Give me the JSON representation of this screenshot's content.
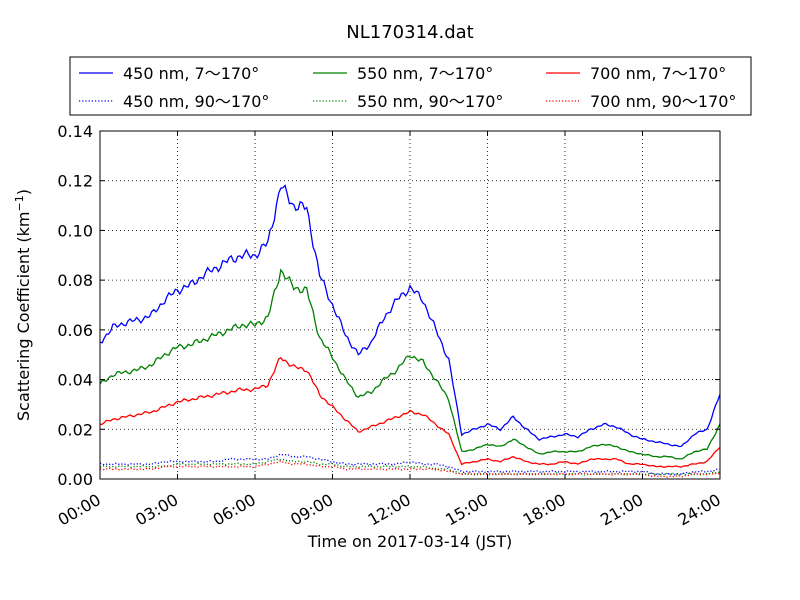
{
  "chart_data": {
    "type": "line",
    "title": "NL170314.dat",
    "xlabel": "Time on 2017-03-14 (JST)",
    "ylabel_main": "Scattering Coefficient (km",
    "ylabel_sup": "−1",
    "ylabel_close": ")",
    "xlim": [
      "00:00",
      "24:00"
    ],
    "ylim": [
      0.0,
      0.14
    ],
    "x_tick_labels": [
      "00:00",
      "03:00",
      "06:00",
      "09:00",
      "12:00",
      "15:00",
      "18:00",
      "21:00",
      "24:00"
    ],
    "y_tick_labels": [
      "0.00",
      "0.02",
      "0.04",
      "0.06",
      "0.08",
      "0.10",
      "0.12",
      "0.14"
    ],
    "grid": true,
    "legend_position": "top",
    "x": [
      "00:00",
      "00:30",
      "01:00",
      "01:30",
      "02:00",
      "02:30",
      "03:00",
      "03:30",
      "04:00",
      "04:30",
      "05:00",
      "05:30",
      "06:00",
      "06:30",
      "07:00",
      "07:30",
      "08:00",
      "08:30",
      "09:00",
      "09:30",
      "10:00",
      "10:30",
      "11:00",
      "11:30",
      "12:00",
      "12:30",
      "13:00",
      "13:30",
      "14:00",
      "14:30",
      "15:00",
      "15:30",
      "16:00",
      "16:30",
      "17:00",
      "17:30",
      "18:00",
      "18:30",
      "19:00",
      "19:30",
      "20:00",
      "20:30",
      "21:00",
      "21:30",
      "22:00",
      "22:30",
      "23:00",
      "23:30",
      "24:00"
    ],
    "series": [
      {
        "name": "450 nm, 7～170°",
        "color": "#0000ff",
        "style": "solid",
        "values": [
          0.055,
          0.061,
          0.063,
          0.064,
          0.066,
          0.072,
          0.076,
          0.078,
          0.082,
          0.085,
          0.088,
          0.09,
          0.09,
          0.095,
          0.118,
          0.11,
          0.109,
          0.082,
          0.07,
          0.058,
          0.05,
          0.055,
          0.065,
          0.072,
          0.077,
          0.072,
          0.06,
          0.048,
          0.018,
          0.02,
          0.022,
          0.02,
          0.025,
          0.02,
          0.016,
          0.017,
          0.018,
          0.017,
          0.02,
          0.022,
          0.021,
          0.018,
          0.016,
          0.015,
          0.014,
          0.013,
          0.018,
          0.02,
          0.034
        ]
      },
      {
        "name": "450 nm, 90～170°",
        "color": "#0000ff",
        "style": "dotted",
        "values": [
          0.006,
          0.006,
          0.006,
          0.006,
          0.006,
          0.007,
          0.007,
          0.007,
          0.007,
          0.007,
          0.008,
          0.008,
          0.008,
          0.008,
          0.01,
          0.009,
          0.009,
          0.008,
          0.007,
          0.006,
          0.006,
          0.006,
          0.006,
          0.006,
          0.007,
          0.006,
          0.006,
          0.005,
          0.003,
          0.003,
          0.003,
          0.003,
          0.003,
          0.003,
          0.003,
          0.003,
          0.003,
          0.003,
          0.003,
          0.003,
          0.003,
          0.003,
          0.003,
          0.002,
          0.002,
          0.002,
          0.003,
          0.003,
          0.004
        ]
      },
      {
        "name": "550 nm, 7～170°",
        "color": "#008000",
        "style": "solid",
        "values": [
          0.038,
          0.042,
          0.043,
          0.044,
          0.046,
          0.05,
          0.053,
          0.054,
          0.056,
          0.058,
          0.06,
          0.062,
          0.062,
          0.065,
          0.084,
          0.077,
          0.076,
          0.057,
          0.049,
          0.04,
          0.033,
          0.035,
          0.04,
          0.044,
          0.05,
          0.047,
          0.04,
          0.032,
          0.011,
          0.012,
          0.014,
          0.013,
          0.016,
          0.013,
          0.01,
          0.011,
          0.011,
          0.011,
          0.013,
          0.014,
          0.013,
          0.011,
          0.01,
          0.009,
          0.009,
          0.008,
          0.011,
          0.012,
          0.022
        ]
      },
      {
        "name": "550 nm, 90～170°",
        "color": "#008000",
        "style": "dotted",
        "values": [
          0.005,
          0.005,
          0.005,
          0.005,
          0.005,
          0.005,
          0.006,
          0.006,
          0.006,
          0.006,
          0.006,
          0.006,
          0.006,
          0.007,
          0.008,
          0.007,
          0.007,
          0.006,
          0.006,
          0.005,
          0.005,
          0.005,
          0.005,
          0.005,
          0.005,
          0.005,
          0.004,
          0.004,
          0.002,
          0.002,
          0.002,
          0.002,
          0.002,
          0.002,
          0.002,
          0.002,
          0.002,
          0.002,
          0.002,
          0.002,
          0.002,
          0.002,
          0.002,
          0.002,
          0.002,
          0.002,
          0.002,
          0.002,
          0.003
        ]
      },
      {
        "name": "700 nm, 7～170°",
        "color": "#ff0000",
        "style": "solid",
        "values": [
          0.022,
          0.024,
          0.025,
          0.026,
          0.027,
          0.029,
          0.031,
          0.032,
          0.033,
          0.034,
          0.035,
          0.036,
          0.036,
          0.038,
          0.049,
          0.045,
          0.044,
          0.034,
          0.029,
          0.024,
          0.019,
          0.021,
          0.023,
          0.025,
          0.027,
          0.026,
          0.022,
          0.018,
          0.006,
          0.007,
          0.008,
          0.007,
          0.009,
          0.007,
          0.006,
          0.006,
          0.007,
          0.006,
          0.008,
          0.008,
          0.008,
          0.006,
          0.006,
          0.005,
          0.005,
          0.005,
          0.006,
          0.007,
          0.013
        ]
      },
      {
        "name": "700 nm, 90～170°",
        "color": "#ff0000",
        "style": "dotted",
        "values": [
          0.004,
          0.004,
          0.004,
          0.004,
          0.004,
          0.005,
          0.005,
          0.005,
          0.005,
          0.005,
          0.005,
          0.005,
          0.005,
          0.006,
          0.007,
          0.006,
          0.006,
          0.005,
          0.005,
          0.004,
          0.004,
          0.004,
          0.004,
          0.004,
          0.004,
          0.004,
          0.004,
          0.003,
          0.002,
          0.002,
          0.002,
          0.002,
          0.002,
          0.002,
          0.002,
          0.002,
          0.002,
          0.002,
          0.002,
          0.002,
          0.002,
          0.002,
          0.002,
          0.001,
          0.001,
          0.001,
          0.002,
          0.002,
          0.002
        ]
      }
    ]
  }
}
